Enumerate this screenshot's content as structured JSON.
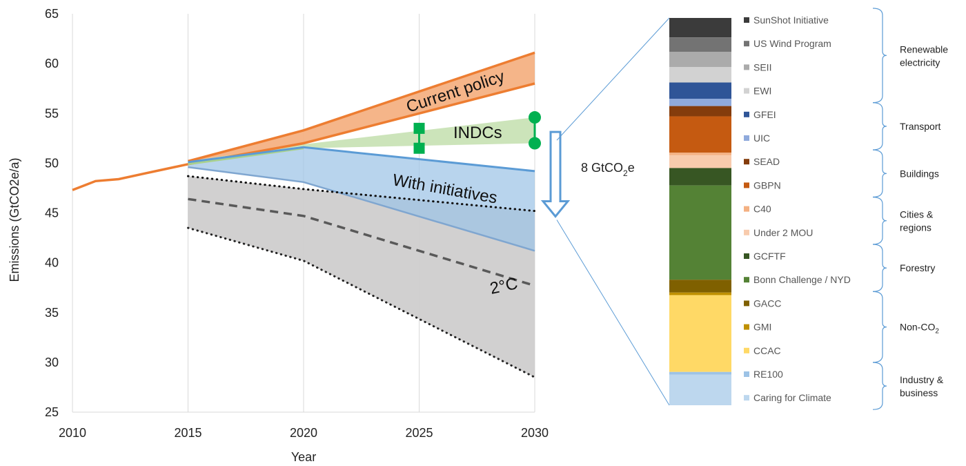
{
  "chart_data": [
    {
      "type": "line",
      "xlabel": "Year",
      "ylabel": "Emissions (GtCO2e/a)",
      "xlim": [
        2010,
        2030
      ],
      "ylim": [
        25,
        65
      ],
      "xticks": [
        "2010",
        "2015",
        "2020",
        "2025",
        "2030"
      ],
      "yticks": [
        "25",
        "30",
        "35",
        "40",
        "45",
        "50",
        "55",
        "60",
        "65"
      ],
      "grid": "vertical",
      "historical": {
        "x": [
          2010,
          2011,
          2012,
          2013,
          2014,
          2015
        ],
        "y": [
          47.3,
          48.2,
          48.4,
          48.9,
          49.4,
          49.9
        ]
      },
      "bands": [
        {
          "name": "Current policy",
          "color": "#ED7D31",
          "fill": "#F4B183",
          "x": [
            2015,
            2020,
            2030
          ],
          "upper": [
            50.2,
            53.3,
            61.1
          ],
          "lower": [
            49.9,
            52.0,
            58.0
          ]
        },
        {
          "name": "INDCs",
          "color": "#A9D18E",
          "fill": "#C9E3B6",
          "x": [
            2015,
            2020,
            2030
          ],
          "upper": [
            50.2,
            51.9,
            54.6
          ],
          "lower": [
            49.9,
            51.5,
            52.0
          ]
        },
        {
          "name": "With initiatives",
          "color": "#5B9BD5",
          "fill": "#9DC3E6",
          "x": [
            2015,
            2020,
            2030
          ],
          "upper": [
            50.1,
            51.6,
            49.2
          ],
          "lower": [
            49.6,
            48.1,
            41.2
          ]
        },
        {
          "name": "2°C",
          "color": "#333333",
          "fill": "#CFCDCD",
          "x": [
            2015,
            2020,
            2030
          ],
          "upper": [
            48.7,
            47.4,
            45.2
          ],
          "lower": [
            43.5,
            40.2,
            28.5
          ],
          "central": [
            46.4,
            44.7,
            37.7
          ]
        }
      ],
      "indc_markers": [
        {
          "x": 2025,
          "y": [
            53.5,
            51.5
          ],
          "shape": "square"
        },
        {
          "x": 2030,
          "y": [
            54.6,
            52.0
          ],
          "shape": "circle"
        }
      ],
      "gap_arrow": {
        "x": 2031,
        "from": 53.0,
        "to": 45.0,
        "label_main": "8 GtCO",
        "label_sub": "2",
        "label_tail": "e"
      }
    },
    {
      "type": "bar",
      "stacked": true,
      "categories": [
        "SunShot Initiative",
        "US Wind Program",
        "SEII",
        "EWI",
        "GFEI",
        "UIC",
        "SEAD",
        "GBPN",
        "C40",
        "Under 2 MOU",
        "GCFTF",
        "Bonn Challenge / NYD",
        "GACC",
        "GMI",
        "CCAC",
        "RE100",
        "Caring for Climate"
      ],
      "colors": [
        "#3B3B3B",
        "#737373",
        "#ABABAB",
        "#D2D2D2",
        "#2F5597",
        "#8FAADC",
        "#843C0C",
        "#C55A11",
        "#F4B183",
        "#F8CBAD",
        "#375623",
        "#548235",
        "#7F6000",
        "#BF9000",
        "#FFD966",
        "#9DC3E6",
        "#BDD7EE"
      ],
      "values": [
        0.38,
        0.28,
        0.3,
        0.3,
        0.32,
        0.14,
        0.2,
        0.71,
        0.05,
        0.25,
        0.34,
        1.84,
        0.25,
        0.05,
        1.5,
        0.05,
        0.6
      ],
      "groups": [
        {
          "label": [
            "Renewable",
            "electricity"
          ],
          "start": 0,
          "end": 3
        },
        {
          "label": [
            "Transport"
          ],
          "start": 4,
          "end": 5
        },
        {
          "label": [
            "Buildings"
          ],
          "start": 6,
          "end": 7
        },
        {
          "label": [
            "Cities &",
            "regions"
          ],
          "start": 8,
          "end": 9
        },
        {
          "label": [
            "Forestry"
          ],
          "start": 10,
          "end": 11
        },
        {
          "label": [
            "Non-CO",
            "2"
          ],
          "start": 12,
          "end": 14,
          "subscript": true
        },
        {
          "label": [
            "Industry &",
            "business"
          ],
          "start": 15,
          "end": 16
        }
      ]
    }
  ]
}
